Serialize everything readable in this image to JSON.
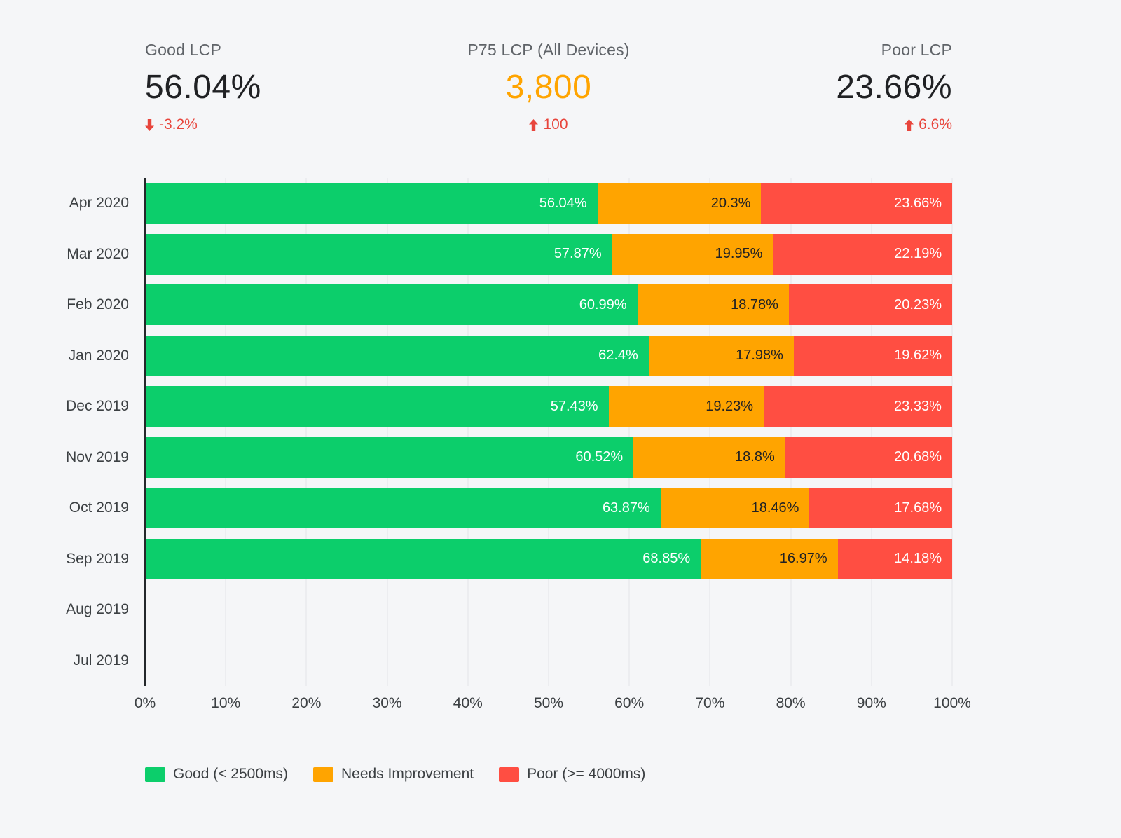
{
  "kpis": [
    {
      "label": "Good LCP",
      "value": "56.04%",
      "delta": "-3.2%",
      "direction": "down",
      "accent": false
    },
    {
      "label": "P75 LCP (All Devices)",
      "value": "3,800",
      "delta": "100",
      "direction": "up",
      "accent": true
    },
    {
      "label": "Poor LCP",
      "value": "23.66%",
      "delta": "6.6%",
      "direction": "up",
      "accent": false
    }
  ],
  "colors": {
    "good": "#0cce6b",
    "needs_improvement": "#ffa400",
    "poor": "#ff4e42",
    "delta_red": "#e8453c",
    "axis": "#24282b",
    "gridline": "#e3e4e8"
  },
  "chart_data": {
    "type": "bar",
    "orientation": "horizontal",
    "stacked": true,
    "xlim": [
      0,
      100
    ],
    "x_ticks": [
      "0%",
      "10%",
      "20%",
      "30%",
      "40%",
      "50%",
      "60%",
      "70%",
      "80%",
      "90%",
      "100%"
    ],
    "categories": [
      "Apr 2020",
      "Mar 2020",
      "Feb 2020",
      "Jan 2020",
      "Dec 2019",
      "Nov 2019",
      "Oct 2019",
      "Sep 2019",
      "Aug 2019",
      "Jul 2019"
    ],
    "series": [
      {
        "key": "good",
        "name": "Good (< 2500ms)",
        "color": "#0cce6b",
        "text_color": "#ffffff",
        "values": [
          56.04,
          57.87,
          60.99,
          62.4,
          57.43,
          60.52,
          63.87,
          68.85,
          null,
          null
        ]
      },
      {
        "key": "needs-improvement",
        "name": "Needs Improvement",
        "color": "#ffa400",
        "text_color": "#202124",
        "values": [
          20.3,
          19.95,
          18.78,
          17.98,
          19.23,
          18.8,
          18.46,
          16.97,
          null,
          null
        ]
      },
      {
        "key": "poor",
        "name": "Poor (>= 4000ms)",
        "color": "#ff4e42",
        "text_color": "#ffffff",
        "values": [
          23.66,
          22.19,
          20.23,
          19.62,
          23.33,
          20.68,
          17.68,
          14.18,
          null,
          null
        ]
      }
    ],
    "legend_position": "bottom",
    "grid": true
  }
}
